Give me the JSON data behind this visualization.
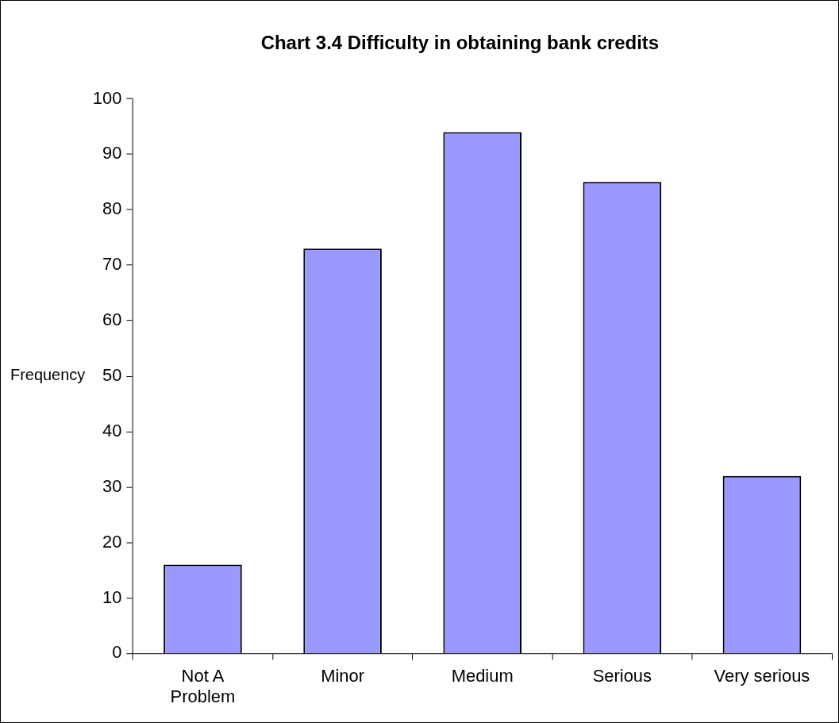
{
  "chart_data": {
    "type": "bar",
    "title": "Chart 3.4 Difficulty in obtaining bank credits",
    "ylabel": "Frequency",
    "categories": [
      "Not A Problem",
      "Minor",
      "Medium",
      "Serious",
      "Very serious"
    ],
    "values": [
      16,
      73,
      94,
      85,
      32
    ],
    "color": "#9999ff",
    "ylim": [
      0,
      100
    ],
    "yticks": [
      0,
      10,
      20,
      30,
      40,
      50,
      60,
      70,
      80,
      90,
      100
    ]
  }
}
